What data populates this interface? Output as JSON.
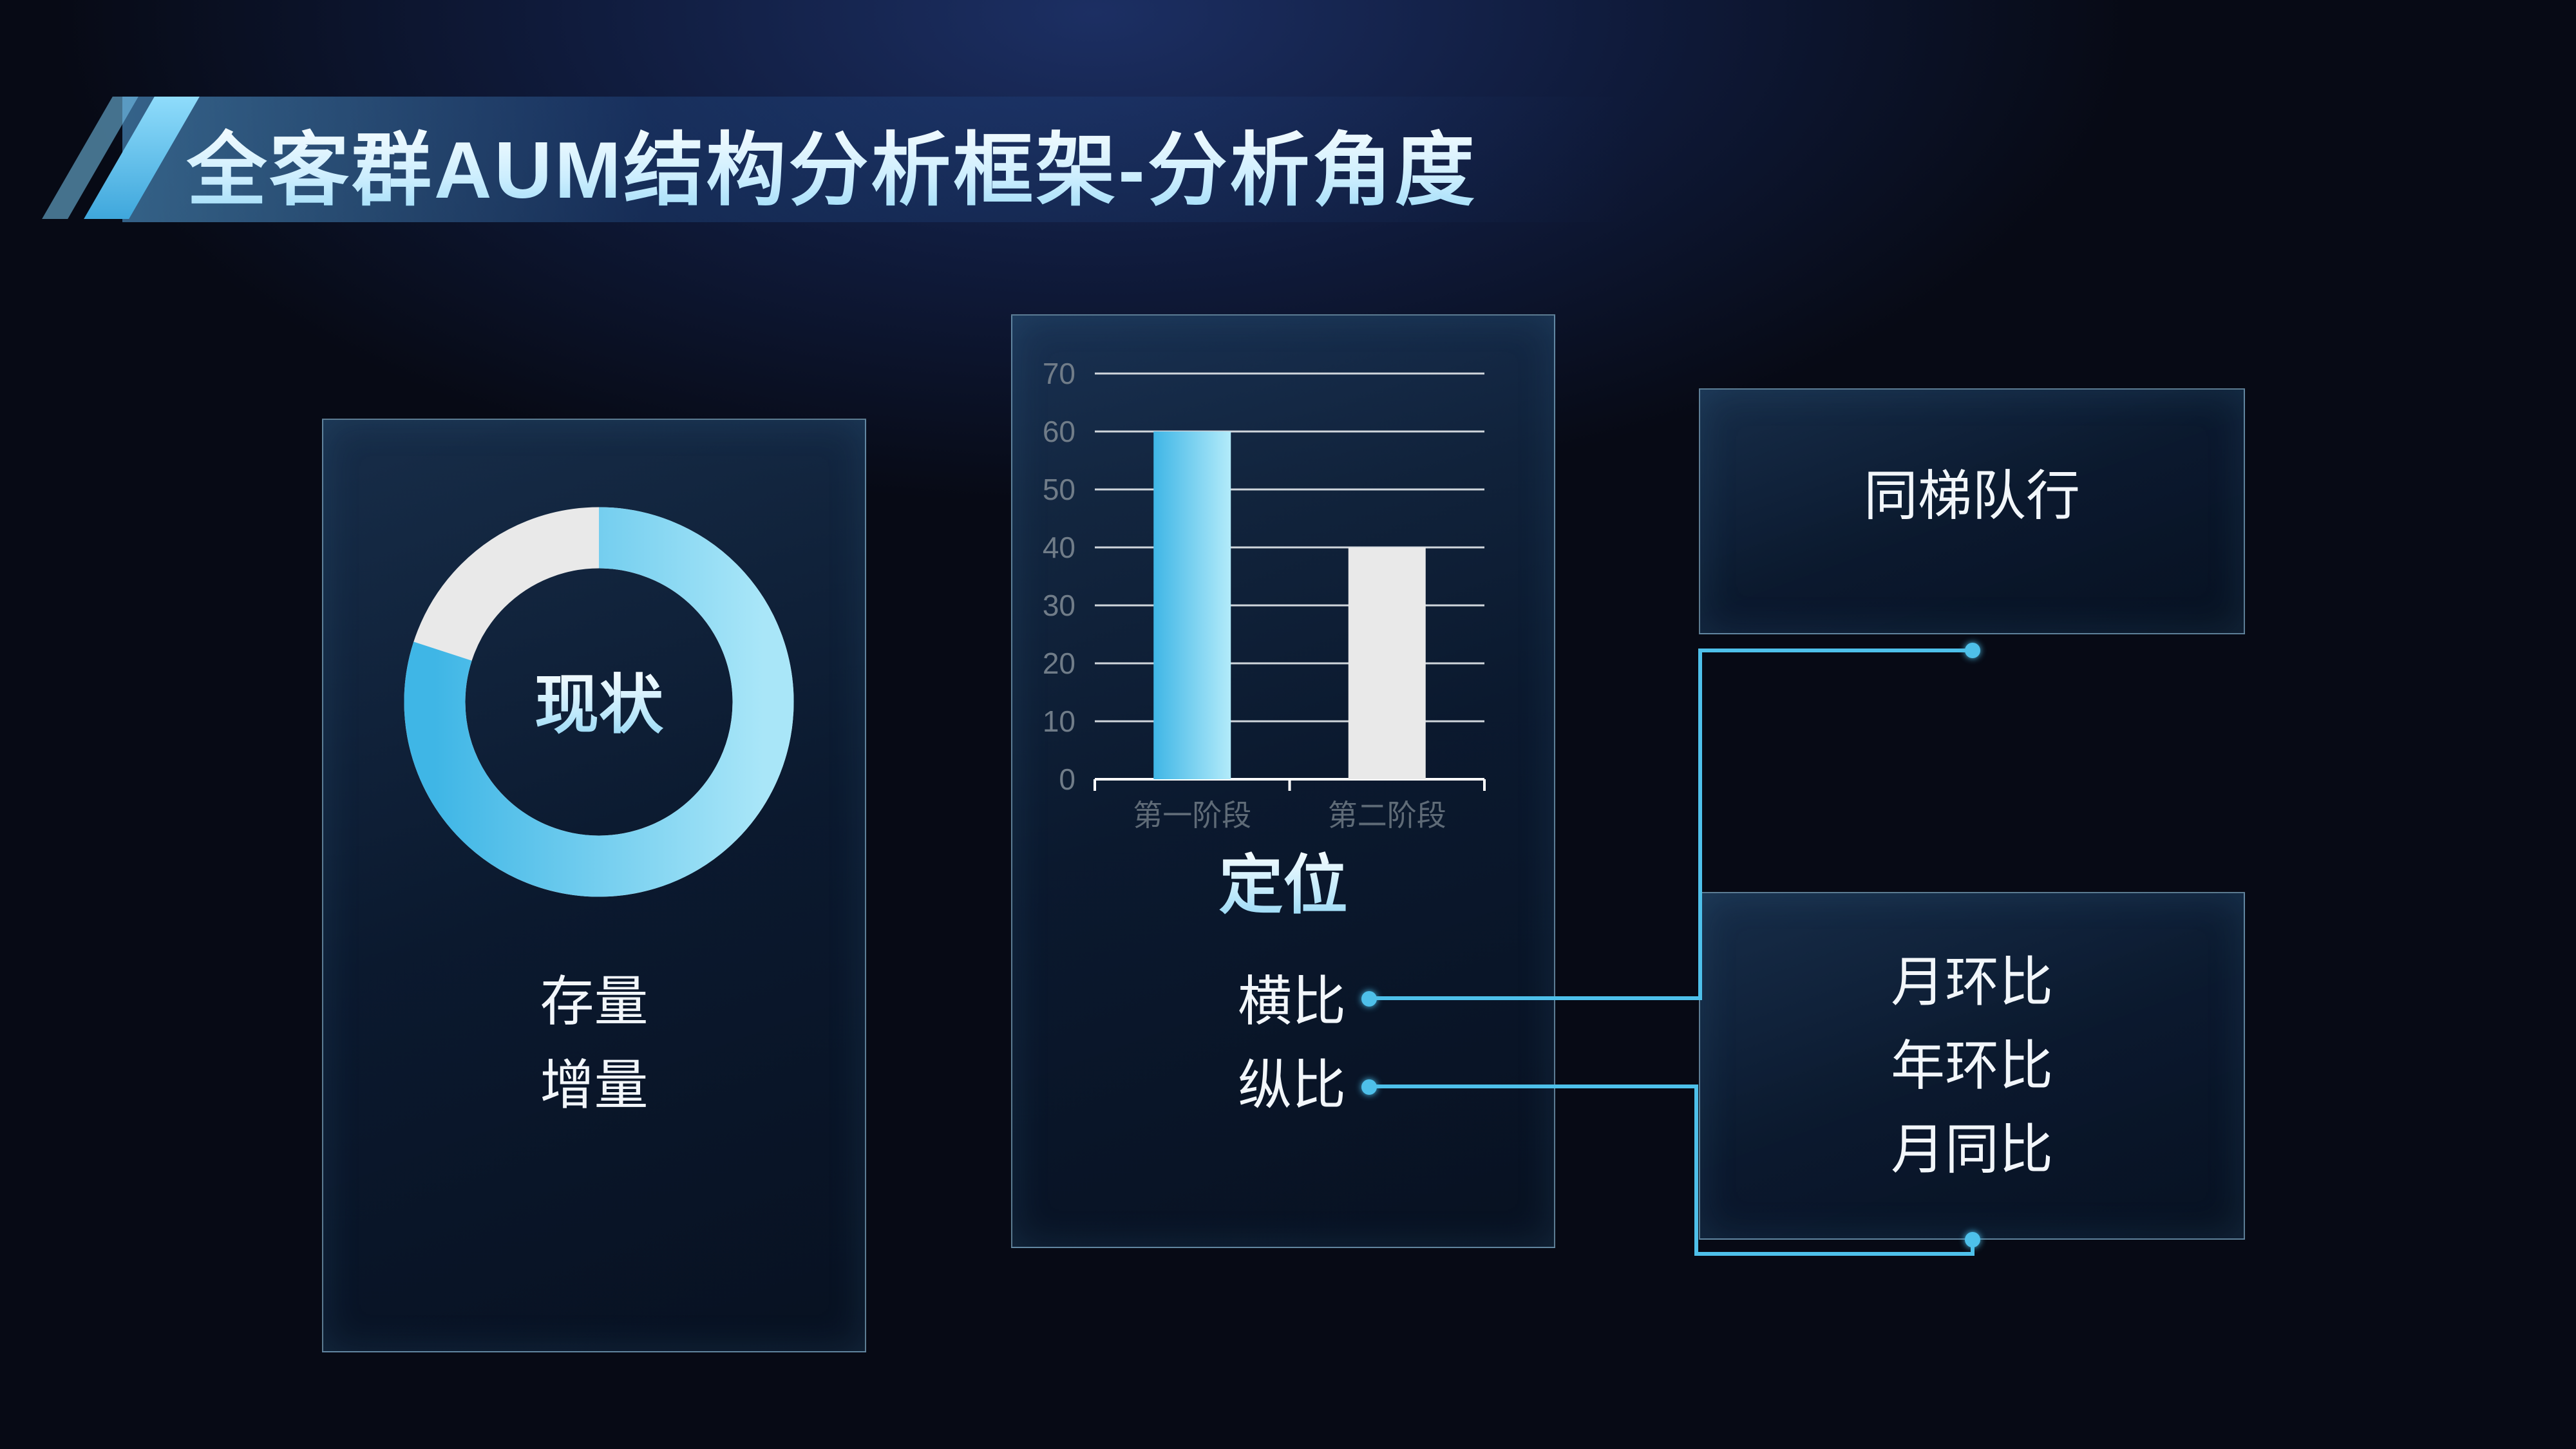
{
  "title": "全客群AUM结构分析框架-分析角度",
  "colors": {
    "accent": "#4ec0ea",
    "light": "#e9e9e9"
  },
  "panel_left": {
    "center_label": "现状",
    "donut_fraction": 0.8,
    "items": [
      "存量",
      "增量"
    ]
  },
  "panel_mid": {
    "label": "定位",
    "items": [
      "横比",
      "纵比"
    ]
  },
  "box_top": {
    "label": "同梯队行"
  },
  "box_bottom": {
    "items": [
      "月环比",
      "年环比",
      "月同比"
    ]
  },
  "chart_data": {
    "type": "bar",
    "categories": [
      "第一阶段",
      "第二阶段"
    ],
    "values": [
      60,
      40
    ],
    "ylim": [
      0,
      70
    ],
    "yticks": [
      0,
      10,
      20,
      30,
      40,
      50,
      60,
      70
    ],
    "grid": true
  }
}
